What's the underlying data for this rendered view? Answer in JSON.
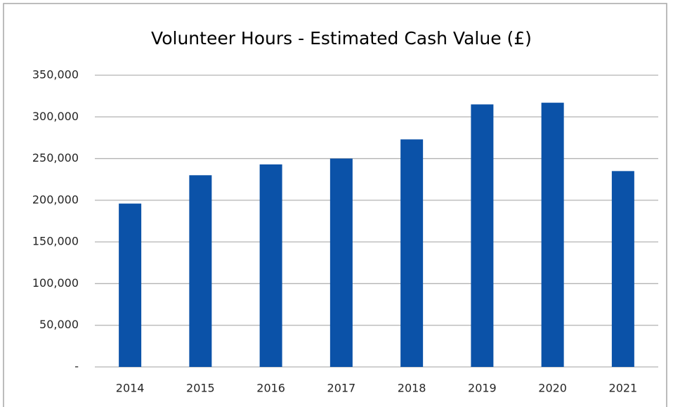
{
  "chart_data": {
    "type": "bar",
    "title": "Volunteer Hours - Estimated Cash Value (£)",
    "categories": [
      "2014",
      "2015",
      "2016",
      "2017",
      "2018",
      "2019",
      "2020",
      "2021"
    ],
    "values": [
      196000,
      230000,
      243000,
      250000,
      273000,
      315000,
      317000,
      235000
    ],
    "color": "#0b52a8",
    "ylim": [
      0,
      350000
    ],
    "yticks": [
      {
        "value": 0,
        "label": "-"
      },
      {
        "value": 50000,
        "label": "50,000"
      },
      {
        "value": 100000,
        "label": "100,000"
      },
      {
        "value": 150000,
        "label": "150,000"
      },
      {
        "value": 200000,
        "label": "200,000"
      },
      {
        "value": 250000,
        "label": "250,000"
      },
      {
        "value": 300000,
        "label": "300,000"
      },
      {
        "value": 350000,
        "label": "350,000"
      }
    ],
    "grid": true
  }
}
